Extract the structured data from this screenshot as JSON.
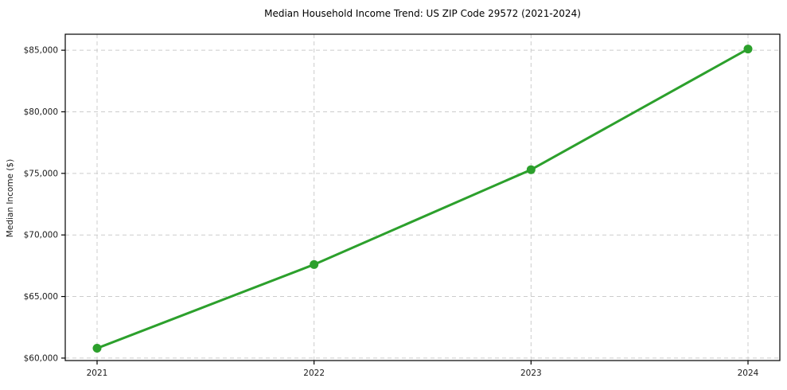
{
  "chart_data": {
    "type": "line",
    "title": "Median Household Income Trend: US ZIP Code 29572 (2021-2024)",
    "xlabel": "",
    "ylabel": "Median Income ($)",
    "categories": [
      "2021",
      "2022",
      "2023",
      "2024"
    ],
    "series": [
      {
        "name": "Median Household Income",
        "values": [
          60800,
          67600,
          75300,
          85100
        ]
      }
    ],
    "yticks": [
      {
        "value": 60000,
        "label": "$60,000"
      },
      {
        "value": 65000,
        "label": "$65,000"
      },
      {
        "value": 70000,
        "label": "$70,000"
      },
      {
        "value": 75000,
        "label": "$75,000"
      },
      {
        "value": 80000,
        "label": "$80,000"
      },
      {
        "value": 85000,
        "label": "$85,000"
      }
    ],
    "ylim": [
      59800,
      86300
    ],
    "grid": true,
    "grid_style": "dashed",
    "legend": "none",
    "colors": {
      "line": "#2ca02c",
      "marker": "#2ca02c",
      "grid": "#cccccc",
      "spine": "#000000",
      "background": "#ffffff"
    },
    "marker": "circle"
  }
}
